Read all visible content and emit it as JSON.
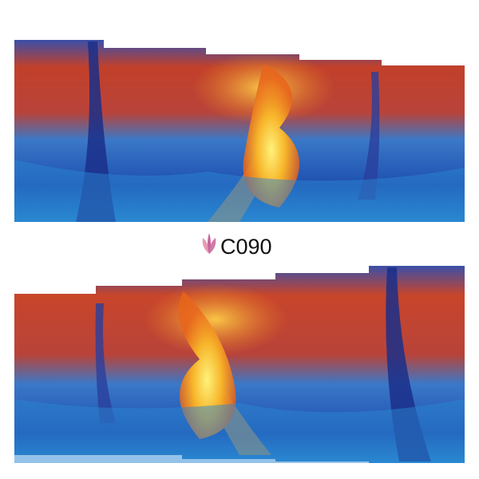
{
  "label": "C090"
}
